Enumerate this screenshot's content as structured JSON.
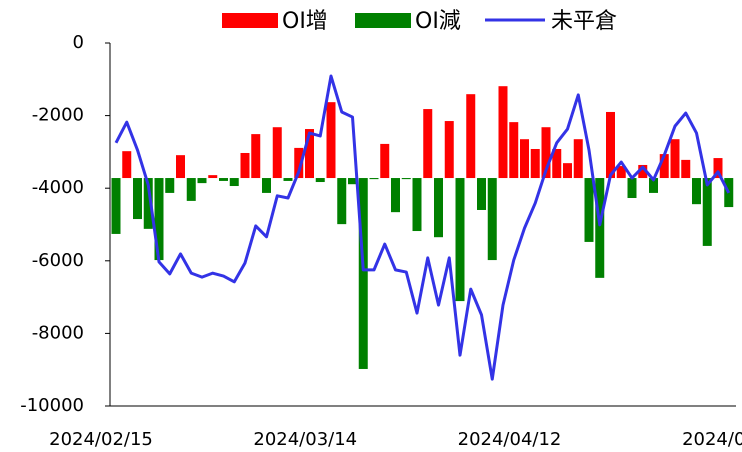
{
  "chart_data": {
    "type": "bar-line",
    "categories": [
      "2024/02/15",
      null,
      null,
      null,
      null,
      null,
      null,
      null,
      null,
      null,
      null,
      null,
      null,
      null,
      null,
      null,
      null,
      null,
      null,
      "2024/03/14",
      null,
      null,
      null,
      null,
      null,
      null,
      null,
      null,
      null,
      null,
      null,
      null,
      null,
      null,
      null,
      null,
      null,
      null,
      "2024/04/12",
      null,
      null,
      null,
      null,
      null,
      null,
      null,
      null,
      null,
      null,
      null,
      null,
      null,
      null,
      null,
      null,
      null,
      null,
      "2024/0"
    ],
    "series": [
      {
        "name": "OI增",
        "color": "#ff0000",
        "axis": "y2",
        "values": [
          null,
          740,
          null,
          null,
          null,
          null,
          630,
          null,
          null,
          80,
          null,
          null,
          690,
          1210,
          null,
          1400,
          null,
          830,
          1350,
          null,
          2090,
          null,
          null,
          null,
          null,
          940,
          null,
          null,
          null,
          1900,
          null,
          1570,
          null,
          2310,
          null,
          null,
          2530,
          1540,
          1070,
          800,
          1400,
          800,
          410,
          1070,
          null,
          null,
          1820,
          330,
          null,
          360,
          null,
          660,
          1070,
          500,
          null,
          null,
          550,
          null
        ]
      },
      {
        "name": "OI減",
        "color": "#008000",
        "axis": "y2",
        "values": [
          -1540,
          null,
          -1130,
          -1400,
          -2260,
          -410,
          null,
          -630,
          -140,
          null,
          -80,
          -220,
          null,
          null,
          -410,
          null,
          -80,
          null,
          null,
          -110,
          null,
          -1270,
          -170,
          -5260,
          -30,
          null,
          -940,
          -30,
          -1460,
          null,
          -1630,
          null,
          -3390,
          null,
          -880,
          -2260,
          null,
          null,
          null,
          null,
          null,
          null,
          null,
          null,
          -1760,
          -2750,
          null,
          null,
          -550,
          null,
          -410,
          null,
          null,
          null,
          -720,
          -1870,
          null,
          -800
        ]
      },
      {
        "name": "未平倉",
        "color": "#3333e6",
        "type": "line",
        "values": [
          -2750,
          -2180,
          -2950,
          -3910,
          -6030,
          -6360,
          -5810,
          -6340,
          -6450,
          -6340,
          -6420,
          -6580,
          -6060,
          -5040,
          -5340,
          -4210,
          -4270,
          -3550,
          -2480,
          -2560,
          -910,
          -1900,
          -2040,
          -6250,
          -6250,
          -5540,
          -6250,
          -6310,
          -7440,
          -5920,
          -7220,
          -5920,
          -8600,
          -6780,
          -7490,
          -9260,
          -7220,
          -5980,
          -5100,
          -4410,
          -3500,
          -2750,
          -2370,
          -1430,
          -2950,
          -5010,
          -3640,
          -3280,
          -3720,
          -3420,
          -3770,
          -3090,
          -2290,
          -1930,
          -2480,
          -3910,
          -3550,
          -4130
        ]
      }
    ],
    "ylim": [
      -10000,
      0
    ],
    "yticks": [
      0,
      -2000,
      -4000,
      -6000,
      -8000,
      -10000
    ],
    "y2lim": [
      -6280,
      3720
    ],
    "legend": "top"
  }
}
